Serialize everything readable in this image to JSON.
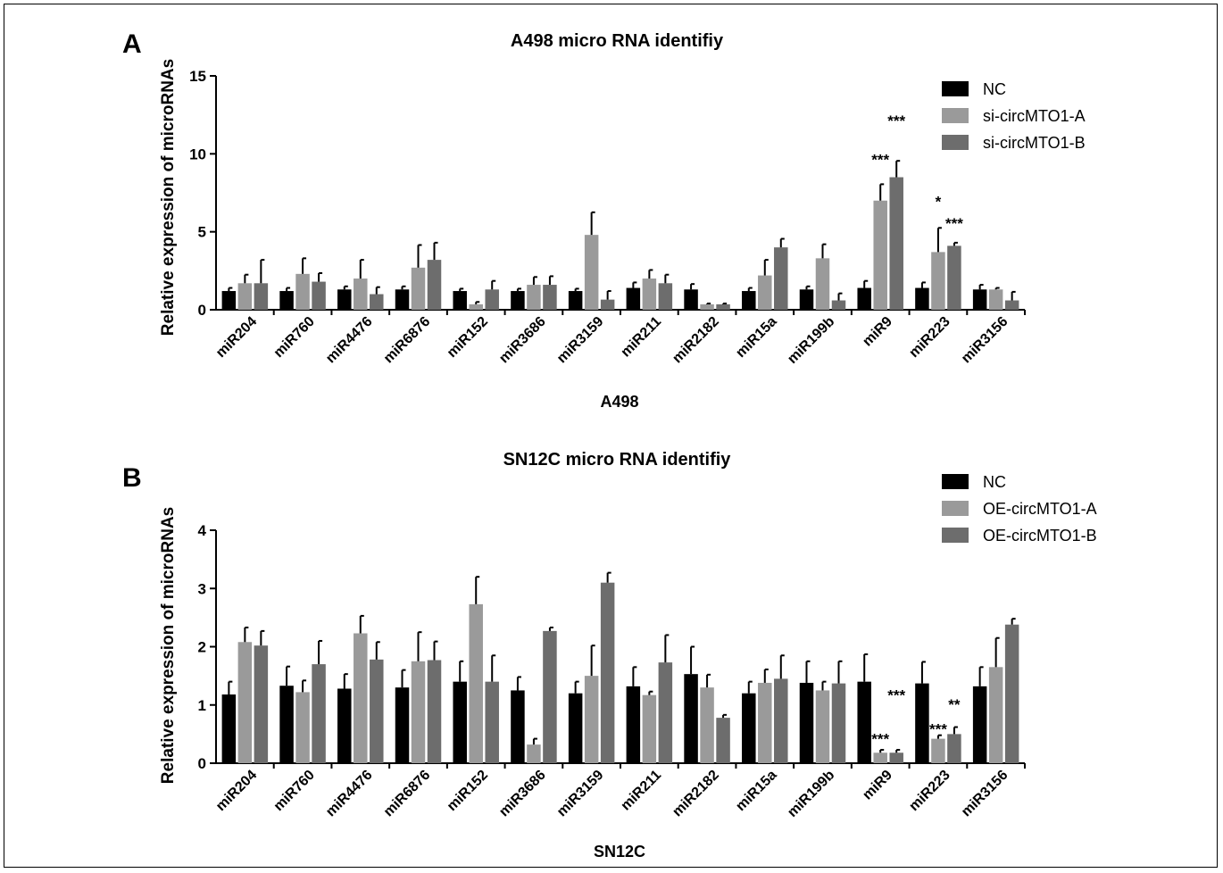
{
  "chart_data": [
    {
      "panel_letter": "A",
      "type": "bar",
      "title": "A498 micro RNA identifiy",
      "xlabel": "A498",
      "ylabel": "Relative  expression of microRNAs",
      "ylim": [
        0,
        15
      ],
      "yticks": [
        0,
        5,
        10,
        15
      ],
      "categories": [
        "miR204",
        "miR760",
        "miR4476",
        "miR6876",
        "miR152",
        "miR3686",
        "miR3159",
        "miR211",
        "miR2182",
        "miR15a",
        "miR199b",
        "miR9",
        "miR223",
        "miR3156"
      ],
      "series": [
        {
          "name": "NC",
          "color": "#000000",
          "values": [
            1.2,
            1.2,
            1.3,
            1.3,
            1.2,
            1.2,
            1.2,
            1.4,
            1.3,
            1.2,
            1.3,
            1.4,
            1.4,
            1.3
          ],
          "errors": [
            0.2,
            0.2,
            0.2,
            0.2,
            0.15,
            0.15,
            0.15,
            0.35,
            0.35,
            0.2,
            0.2,
            0.45,
            0.35,
            0.3
          ]
        },
        {
          "name": "si-circMTO1-A",
          "color": "#9a9a9a",
          "values": [
            1.7,
            2.3,
            2.0,
            2.7,
            0.35,
            1.6,
            4.8,
            2.0,
            0.35,
            2.2,
            3.3,
            7.0,
            3.7,
            1.3
          ],
          "errors": [
            0.55,
            1.0,
            1.2,
            1.45,
            0.15,
            0.5,
            1.45,
            0.55,
            0.05,
            1.0,
            0.9,
            1.05,
            1.55,
            0.1
          ]
        },
        {
          "name": "si-circMTO1-B",
          "color": "#6d6d6d",
          "values": [
            1.7,
            1.8,
            1.0,
            3.2,
            1.3,
            1.6,
            0.65,
            1.7,
            0.35,
            4.0,
            0.6,
            8.5,
            4.1,
            0.6
          ],
          "errors": [
            1.5,
            0.55,
            0.45,
            1.1,
            0.55,
            0.55,
            0.55,
            0.55,
            0.05,
            0.55,
            0.45,
            1.05,
            0.2,
            0.55
          ]
        }
      ],
      "annotations": [
        {
          "text": "***",
          "category": "miR9",
          "series": 1,
          "value": 9.3
        },
        {
          "text": "***",
          "category": "miR9",
          "series": 2,
          "value": 11.8
        },
        {
          "text": "*",
          "category": "miR223",
          "series": 1,
          "value": 6.6
        },
        {
          "text": "***",
          "category": "miR223",
          "series": 2,
          "value": 5.2
        }
      ],
      "legend_position": "top-right",
      "grid": false
    },
    {
      "panel_letter": "B",
      "type": "bar",
      "title": "SN12C  micro RNA identifiy",
      "xlabel": "SN12C",
      "ylabel": "Relative  expression of microRNAs",
      "ylim": [
        0,
        4
      ],
      "yticks": [
        0,
        1,
        2,
        3,
        4
      ],
      "categories": [
        "miR204",
        "miR760",
        "miR4476",
        "miR6876",
        "miR152",
        "miR3686",
        "miR3159",
        "miR211",
        "miR2182",
        "miR15a",
        "miR199b",
        "miR9",
        "miR223",
        "miR3156"
      ],
      "series": [
        {
          "name": "NC",
          "color": "#000000",
          "values": [
            1.18,
            1.33,
            1.28,
            1.3,
            1.4,
            1.25,
            1.2,
            1.32,
            1.53,
            1.2,
            1.38,
            1.4,
            1.37,
            1.32
          ],
          "errors": [
            0.22,
            0.33,
            0.25,
            0.3,
            0.35,
            0.23,
            0.2,
            0.33,
            0.47,
            0.2,
            0.37,
            0.47,
            0.37,
            0.33
          ]
        },
        {
          "name": "OE-circMTO1-A",
          "color": "#9a9a9a",
          "values": [
            2.08,
            1.22,
            2.23,
            1.75,
            2.73,
            0.32,
            1.5,
            1.17,
            1.3,
            1.38,
            1.25,
            0.18,
            0.42,
            1.65
          ]
        },
        {
          "name": "OE-circMTO1-B",
          "color": "#6d6d6d",
          "values": [
            2.02,
            1.7,
            1.78,
            1.77,
            1.4,
            2.27,
            3.1,
            1.73,
            0.78,
            1.45,
            1.37,
            0.18,
            0.5,
            2.38
          ]
        }
      ],
      "errors_ab": [
        [
          [
            0.25,
            0.25
          ],
          [
            0.2,
            0.4
          ],
          [
            0.3,
            0.3
          ],
          [
            0.5,
            0.32
          ],
          [
            0.47,
            0.45
          ],
          [
            0.1,
            0.06
          ],
          [
            0.52,
            0.17
          ],
          [
            0.06,
            0.47
          ],
          [
            0.22,
            0.05
          ],
          [
            0.23,
            0.4
          ],
          [
            0.15,
            0.38
          ],
          [
            0.05,
            0.05
          ],
          [
            0.06,
            0.12
          ],
          [
            0.5,
            0.1
          ]
        ]
      ],
      "annotations": [
        {
          "text": "***",
          "category": "miR9",
          "series": 1,
          "value": 0.33
        },
        {
          "text": "***",
          "category": "miR9",
          "series": 2,
          "value": 1.08
        },
        {
          "text": "***",
          "category": "miR223",
          "series": 1,
          "value": 0.5
        },
        {
          "text": "**",
          "category": "miR223",
          "series": 2,
          "value": 0.92
        }
      ],
      "legend_position": "top-right",
      "grid": false
    }
  ]
}
